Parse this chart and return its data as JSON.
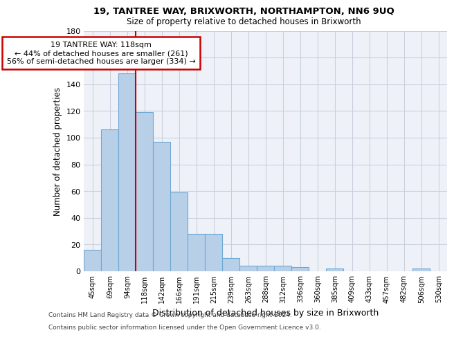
{
  "title1": "19, TANTREE WAY, BRIXWORTH, NORTHAMPTON, NN6 9UQ",
  "title2": "Size of property relative to detached houses in Brixworth",
  "xlabel": "Distribution of detached houses by size in Brixworth",
  "ylabel": "Number of detached properties",
  "categories": [
    "45sqm",
    "69sqm",
    "94sqm",
    "118sqm",
    "142sqm",
    "166sqm",
    "191sqm",
    "215sqm",
    "239sqm",
    "263sqm",
    "288sqm",
    "312sqm",
    "336sqm",
    "360sqm",
    "385sqm",
    "409sqm",
    "433sqm",
    "457sqm",
    "482sqm",
    "506sqm",
    "530sqm"
  ],
  "values": [
    16,
    106,
    148,
    119,
    97,
    59,
    28,
    28,
    10,
    4,
    4,
    4,
    3,
    0,
    2,
    0,
    0,
    0,
    0,
    2,
    0
  ],
  "bar_color": "#b8cfe8",
  "bar_edge_color": "#6fa8d4",
  "vline_x": 2.5,
  "vline_color": "#cc0000",
  "annotation_text": "19 TANTREE WAY: 118sqm\n← 44% of detached houses are smaller (261)\n56% of semi-detached houses are larger (334) →",
  "annotation_box_color": "#ffffff",
  "annotation_box_edge_color": "#cc0000",
  "ylim": [
    0,
    180
  ],
  "yticks": [
    0,
    20,
    40,
    60,
    80,
    100,
    120,
    140,
    160,
    180
  ],
  "footer1": "Contains HM Land Registry data © Crown copyright and database right 2024.",
  "footer2": "Contains public sector information licensed under the Open Government Licence v3.0.",
  "bg_color": "#eef2f8",
  "grid_color": "#c8d0dc"
}
